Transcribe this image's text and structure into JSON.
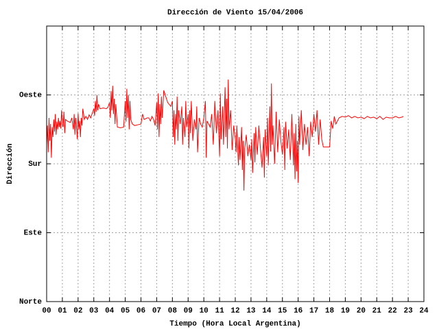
{
  "chart_data": {
    "type": "line",
    "title": "Dirección de Viento 15/04/2006",
    "x_label": "Tiempo (Hora Local Argentina)",
    "y_label": "Dirección",
    "color": "#ff0000",
    "grid": true,
    "xlim": [
      0,
      24
    ],
    "ylim": [
      0,
      360
    ],
    "xticks": [
      {
        "value": 0,
        "label": "00"
      },
      {
        "value": 1,
        "label": "01"
      },
      {
        "value": 2,
        "label": "02"
      },
      {
        "value": 3,
        "label": "03"
      },
      {
        "value": 4,
        "label": "04"
      },
      {
        "value": 5,
        "label": "05"
      },
      {
        "value": 6,
        "label": "06"
      },
      {
        "value": 7,
        "label": "07"
      },
      {
        "value": 8,
        "label": "08"
      },
      {
        "value": 9,
        "label": "09"
      },
      10,
      11,
      12,
      13,
      14,
      15,
      16,
      17,
      18,
      19,
      20,
      21,
      22,
      23,
      24
    ],
    "yticks": [
      {
        "value": 0,
        "label": "Norte"
      },
      {
        "value": 90,
        "label": "Este"
      },
      {
        "value": 180,
        "label": "Sur"
      },
      {
        "value": 270,
        "label": "Oeste"
      }
    ],
    "x": [
      0,
      0.05,
      0.1,
      0.15,
      0.2,
      0.25,
      0.3,
      0.35,
      0.4,
      0.45,
      0.5,
      0.55,
      0.6,
      0.65,
      0.7,
      0.75,
      0.8,
      0.85,
      0.9,
      0.95,
      1,
      1.05,
      1.1,
      1.15,
      1.2,
      1.3,
      1.5,
      1.6,
      1.7,
      1.75,
      1.8,
      1.85,
      1.9,
      1.95,
      2,
      2.05,
      2.1,
      2.15,
      2.2,
      2.25,
      2.3,
      2.4,
      2.5,
      2.6,
      2.7,
      2.8,
      2.9,
      3,
      3.05,
      3.1,
      3.15,
      3.2,
      3.25,
      3.3,
      3.4,
      3.6,
      3.8,
      3.9,
      4,
      4.05,
      4.1,
      4.15,
      4.2,
      4.25,
      4.3,
      4.35,
      4.4,
      4.5,
      4.7,
      4.9,
      5,
      5.05,
      5.1,
      5.15,
      5.2,
      5.25,
      5.3,
      5.35,
      5.45,
      5.6,
      5.8,
      6,
      6.1,
      6.2,
      6.4,
      6.5,
      6.6,
      6.7,
      6.8,
      6.9,
      7,
      7.05,
      7.1,
      7.15,
      7.2,
      7.25,
      7.3,
      7.35,
      7.45,
      7.7,
      7.9,
      8,
      8.05,
      8.1,
      8.15,
      8.2,
      8.25,
      8.3,
      8.35,
      8.4,
      8.5,
      8.6,
      8.65,
      8.7,
      8.8,
      8.85,
      8.9,
      9,
      9.05,
      9.1,
      9.15,
      9.2,
      9.3,
      9.4,
      9.5,
      9.55,
      9.6,
      9.7,
      9.8,
      9.9,
      10,
      10.1,
      10.15,
      10.2,
      10.4,
      10.5,
      10.6,
      10.7,
      10.8,
      10.9,
      11,
      11.05,
      11.1,
      11.2,
      11.25,
      11.35,
      11.4,
      11.45,
      11.5,
      11.55,
      11.6,
      11.7,
      11.8,
      11.9,
      12,
      12.05,
      12.1,
      12.2,
      12.25,
      12.3,
      12.4,
      12.45,
      12.5,
      12.55,
      12.6,
      12.7,
      12.8,
      12.9,
      13,
      13.05,
      13.1,
      13.2,
      13.25,
      13.3,
      13.4,
      13.5,
      13.6,
      13.7,
      13.8,
      13.85,
      13.9,
      14,
      14.05,
      14.1,
      14.2,
      14.25,
      14.3,
      14.35,
      14.4,
      14.5,
      14.6,
      14.7,
      14.8,
      14.9,
      15,
      15.1,
      15.15,
      15.2,
      15.3,
      15.4,
      15.5,
      15.6,
      15.7,
      15.75,
      15.8,
      15.85,
      15.9,
      15.95,
      16,
      16.05,
      16.1,
      16.2,
      16.3,
      16.4,
      16.5,
      16.6,
      16.7,
      16.8,
      16.9,
      17,
      17.1,
      17.2,
      17.3,
      17.4,
      17.5,
      17.6,
      17.8,
      18,
      18.1,
      18.2,
      18.3,
      18.4,
      18.6,
      18.8,
      19,
      19.2,
      19.4,
      19.6,
      19.8,
      20,
      20.2,
      20.4,
      20.6,
      20.8,
      21,
      21.2,
      21.4,
      21.6,
      21.8,
      22,
      22.2,
      22.4,
      22.6,
      22.7
    ],
    "values": [
      205,
      230,
      195,
      240,
      210,
      232,
      188,
      228,
      215,
      238,
      222,
      245,
      218,
      235,
      225,
      240,
      228,
      236,
      226,
      250,
      232,
      228,
      248,
      220,
      238,
      236,
      234,
      240,
      225,
      245,
      218,
      240,
      228,
      212,
      246,
      225,
      236,
      215,
      240,
      230,
      252,
      238,
      242,
      238,
      244,
      240,
      246,
      252,
      243,
      262,
      248,
      270,
      250,
      258,
      252,
      253,
      252,
      254,
      260,
      240,
      275,
      250,
      282,
      245,
      265,
      232,
      258,
      228,
      227,
      228,
      262,
      235,
      278,
      240,
      270,
      225,
      262,
      238,
      232,
      230,
      231,
      232,
      245,
      238,
      240,
      240,
      236,
      242,
      238,
      230,
      260,
      225,
      272,
      215,
      258,
      232,
      268,
      240,
      276,
      260,
      255,
      262,
      215,
      250,
      205,
      245,
      225,
      268,
      210,
      250,
      232,
      255,
      205,
      240,
      215,
      262,
      228,
      245,
      200,
      250,
      220,
      262,
      210,
      238,
      225,
      255,
      195,
      240,
      232,
      228,
      240,
      262,
      188,
      236,
      228,
      245,
      205,
      262,
      220,
      250,
      190,
      272,
      212,
      255,
      205,
      280,
      215,
      265,
      200,
      290,
      225,
      250,
      198,
      230,
      212,
      195,
      230,
      178,
      215,
      185,
      228,
      172,
      210,
      145,
      200,
      218,
      190,
      205,
      185,
      212,
      168,
      220,
      182,
      228,
      192,
      230,
      200,
      175,
      215,
      162,
      225,
      190,
      240,
      178,
      255,
      196,
      285,
      205,
      230,
      180,
      248,
      195,
      238,
      210,
      192,
      228,
      172,
      235,
      200,
      225,
      185,
      245,
      178,
      220,
      160,
      232,
      170,
      210,
      155,
      242,
      205,
      250,
      198,
      232,
      205,
      228,
      190,
      235,
      215,
      245,
      222,
      250,
      205,
      238,
      212,
      202,
      202,
      202,
      236,
      226,
      242,
      232,
      240,
      242,
      241,
      243,
      240,
      242,
      240,
      241,
      239,
      242,
      240,
      241,
      239,
      242,
      238,
      241,
      240,
      240,
      242,
      240,
      241,
      242
    ]
  }
}
